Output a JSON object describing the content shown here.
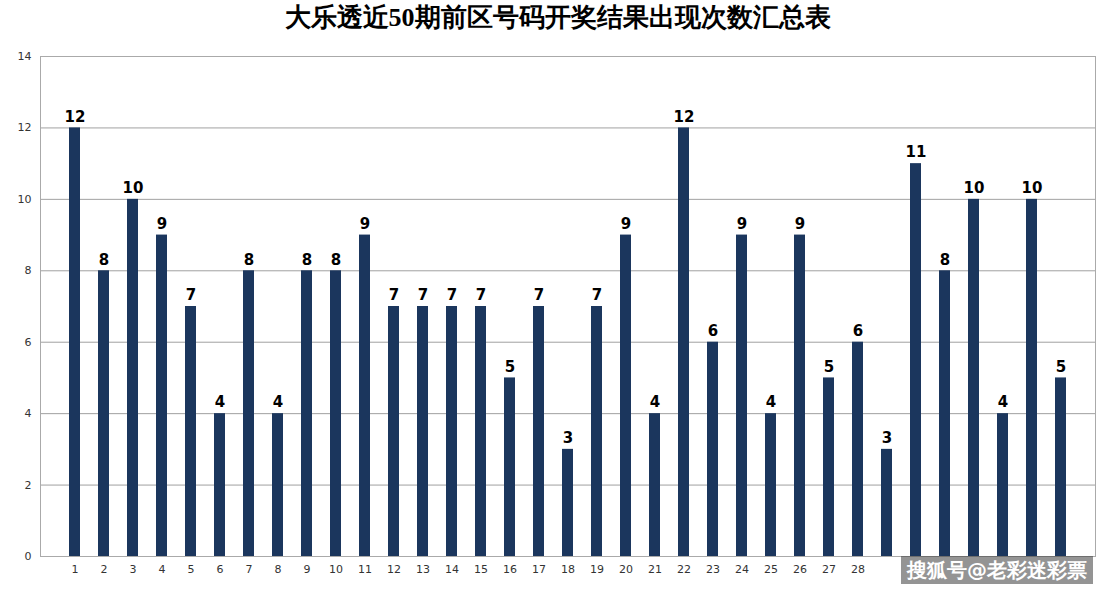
{
  "chart_data": {
    "type": "bar",
    "title": "大乐透近50期前区号码开奖结果出现次数汇总表",
    "categories": [
      "1",
      "2",
      "3",
      "4",
      "5",
      "6",
      "7",
      "8",
      "9",
      "10",
      "11",
      "12",
      "13",
      "14",
      "15",
      "16",
      "17",
      "18",
      "19",
      "20",
      "21",
      "22",
      "23",
      "24",
      "25",
      "26",
      "27",
      "28",
      null,
      null,
      null,
      null,
      null,
      null,
      null
    ],
    "values": [
      12,
      8,
      10,
      9,
      7,
      4,
      8,
      4,
      8,
      8,
      9,
      7,
      7,
      7,
      7,
      5,
      7,
      3,
      7,
      9,
      4,
      12,
      6,
      9,
      4,
      9,
      5,
      6,
      3,
      11,
      8,
      10,
      4,
      10,
      5
    ],
    "color": "#1b365d",
    "ylim": [
      0,
      14
    ],
    "yticks": [
      0,
      2,
      4,
      6,
      8,
      10,
      12,
      14
    ],
    "grid": true,
    "data_labels": true,
    "annotations": [
      "搜狐号@老彩迷彩票"
    ]
  }
}
